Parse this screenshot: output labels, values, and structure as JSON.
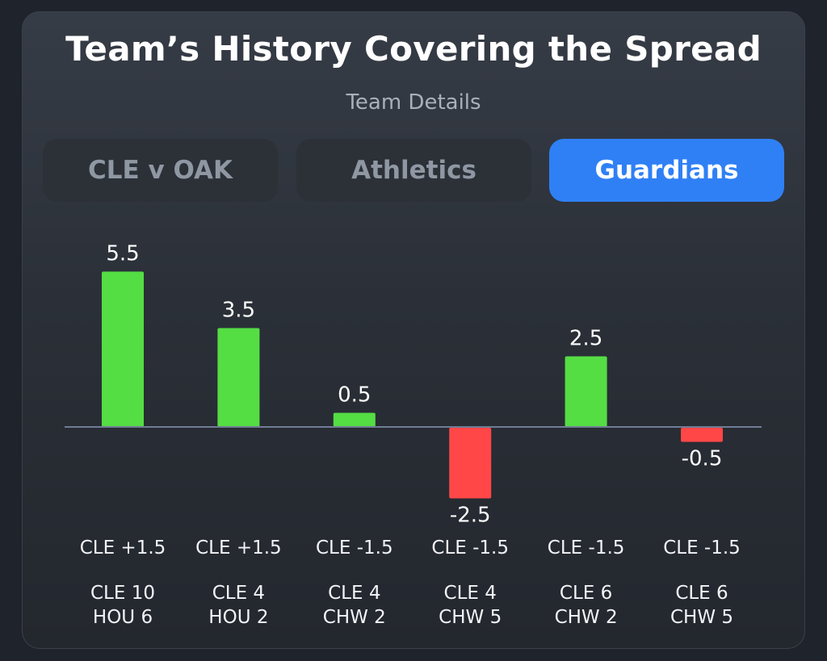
{
  "header": {
    "title": "Team’s History Covering the Spread",
    "subtitle": "Team Details"
  },
  "tabs": [
    {
      "label": "CLE v OAK",
      "active": false
    },
    {
      "label": "Athletics",
      "active": false
    },
    {
      "label": "Guardians",
      "active": true
    }
  ],
  "colors": {
    "positive": "#55dd44",
    "negative": "#ff4747",
    "accent": "#2f80f5",
    "baseline": "#6f7d95"
  },
  "chart_data": {
    "type": "bar",
    "categories": [
      "CLE +1.5",
      "CLE +1.5",
      "CLE -1.5",
      "CLE -1.5",
      "CLE -1.5",
      "CLE -1.5"
    ],
    "values": [
      5.5,
      3.5,
      0.5,
      -2.5,
      2.5,
      -0.5
    ],
    "value_labels": [
      "5.5",
      "3.5",
      "0.5",
      "-2.5",
      "2.5",
      "-0.5"
    ],
    "scores": [
      [
        "CLE 10",
        "HOU 6"
      ],
      [
        "CLE 4",
        "HOU 2"
      ],
      [
        "CLE 4",
        "CHW 2"
      ],
      [
        "CLE 4",
        "CHW 5"
      ],
      [
        "CLE 6",
        "CHW 2"
      ],
      [
        "CLE 6",
        "CHW 5"
      ]
    ],
    "ylim": [
      -2.5,
      5.5
    ],
    "grid": false
  }
}
